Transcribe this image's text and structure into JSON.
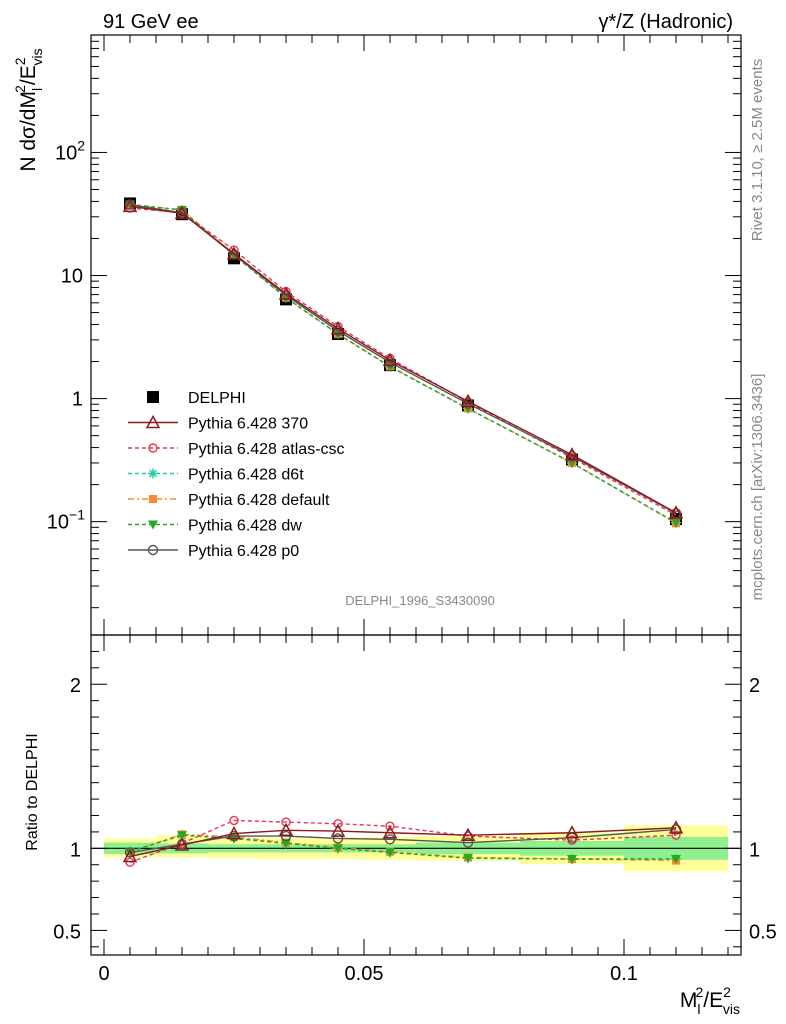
{
  "header": {
    "left": "91 GeV ee",
    "right": "γ*/Z (Hadronic)"
  },
  "side_labels": {
    "rivet": "Rivet 3.1.10, ≥ 2.5M events",
    "mcplots": "mcplots.cern.ch [arXiv:1306.3436]"
  },
  "watermark": "DELPHI_1996_S3430090",
  "colors": {
    "data": "#000000",
    "p370": "#8b1a1a",
    "atlas": "#ee3355",
    "d6t": "#22ccaa",
    "default": "#ff8833",
    "dw": "#22aa22",
    "p0": "#555555",
    "band_inner": "#90f090",
    "band_outer": "#ffff99"
  },
  "chart_data": [
    {
      "type": "line",
      "ylabel_main": "N dσ/dM",
      "ylabel_sub1": "l",
      "ylabel_sup1": "2",
      "ylabel_mid": "/E",
      "ylabel_sup2": "2",
      "ylabel_sub2": "vis",
      "yscale": "log",
      "ylim": [
        0.012,
        900
      ],
      "xlim": [
        -0.0025,
        0.1225
      ],
      "yticks": [
        {
          "v": 0.1,
          "base": "10",
          "exp": "−1"
        },
        {
          "v": 1,
          "label": "1"
        },
        {
          "v": 10,
          "label": "10"
        },
        {
          "v": 100,
          "base": "10",
          "exp": "2"
        }
      ],
      "x": [
        0.005,
        0.015,
        0.025,
        0.035,
        0.045,
        0.055,
        0.07,
        0.09,
        0.11
      ],
      "data": {
        "name": "DELPHI",
        "values": [
          38.5,
          31.5,
          13.8,
          6.4,
          3.35,
          1.87,
          0.88,
          0.32,
          0.105
        ]
      },
      "series": [
        {
          "name": "Pythia 6.428 370",
          "key": "p370",
          "dash": "",
          "marker": "tri-open",
          "values": [
            36.5,
            32.0,
            15.0,
            7.1,
            3.7,
            2.05,
            0.95,
            0.35,
            0.118
          ]
        },
        {
          "name": "Pythia 6.428 atlas-csc",
          "key": "atlas",
          "dash": "4,3",
          "marker": "circ-open",
          "values": [
            35.3,
            32.5,
            16.1,
            7.4,
            3.85,
            2.12,
            0.94,
            0.33,
            0.113
          ]
        },
        {
          "name": "Pythia 6.428 d6t",
          "key": "d6t",
          "dash": "4,3",
          "marker": "star",
          "values": [
            37.8,
            34.0,
            14.7,
            6.6,
            3.35,
            1.82,
            0.83,
            0.3,
            0.098
          ]
        },
        {
          "name": "Pythia 6.428 default",
          "key": "default",
          "dash": "6,3,2,3",
          "marker": "square",
          "values": [
            37.8,
            34.2,
            14.8,
            6.6,
            3.36,
            1.83,
            0.83,
            0.3,
            0.097
          ]
        },
        {
          "name": "Pythia 6.428 dw",
          "key": "dw",
          "dash": "4,3",
          "marker": "tri-down",
          "values": [
            37.8,
            34.0,
            14.6,
            6.6,
            3.35,
            1.82,
            0.83,
            0.3,
            0.098
          ]
        },
        {
          "name": "Pythia 6.428 p0",
          "key": "p0",
          "dash": "",
          "marker": "circ-open-dark",
          "values": [
            37.6,
            32.3,
            14.8,
            6.9,
            3.55,
            1.97,
            0.91,
            0.34,
            0.117
          ]
        }
      ]
    },
    {
      "type": "line",
      "ylabel": "Ratio to DELPHI",
      "xlabel_main": "M",
      "xlabel_sub1": "l",
      "xlabel_sup1": "2",
      "xlabel_mid": "/E",
      "xlabel_sup2": "2",
      "xlabel_sub2": "vis",
      "ylim": [
        0.35,
        2.3
      ],
      "xlim": [
        -0.0025,
        0.1225
      ],
      "yticks": [
        0.5,
        1,
        2
      ],
      "ytick_labels": [
        "0.5",
        "1",
        "2"
      ],
      "xticks": [
        0,
        0.05,
        0.1
      ],
      "xtick_labels": [
        "0",
        "0.05",
        "0.1"
      ],
      "bands": [
        {
          "x0": 0.0,
          "x1": 0.01,
          "inner": [
            0.965,
            1.035
          ],
          "outer": [
            0.945,
            1.06
          ]
        },
        {
          "x0": 0.01,
          "x1": 0.02,
          "inner": [
            0.97,
            1.03
          ],
          "outer": [
            0.945,
            1.08
          ]
        },
        {
          "x0": 0.02,
          "x1": 0.03,
          "inner": [
            0.975,
            1.025
          ],
          "outer": [
            0.94,
            1.06
          ]
        },
        {
          "x0": 0.03,
          "x1": 0.04,
          "inner": [
            0.975,
            1.025
          ],
          "outer": [
            0.935,
            1.065
          ]
        },
        {
          "x0": 0.04,
          "x1": 0.05,
          "inner": [
            0.975,
            1.025
          ],
          "outer": [
            0.935,
            1.065
          ]
        },
        {
          "x0": 0.05,
          "x1": 0.06,
          "inner": [
            0.975,
            1.025
          ],
          "outer": [
            0.93,
            1.07
          ]
        },
        {
          "x0": 0.06,
          "x1": 0.08,
          "inner": [
            0.965,
            1.035
          ],
          "outer": [
            0.925,
            1.075
          ]
        },
        {
          "x0": 0.08,
          "x1": 0.1,
          "inner": [
            0.955,
            1.045
          ],
          "outer": [
            0.905,
            1.095
          ]
        },
        {
          "x0": 0.1,
          "x1": 0.12,
          "inner": [
            0.93,
            1.07
          ],
          "outer": [
            0.86,
            1.14
          ]
        }
      ],
      "series": [
        {
          "key": "p370",
          "dash": "",
          "marker": "tri-open",
          "values": [
            0.95,
            1.02,
            1.09,
            1.11,
            1.105,
            1.095,
            1.08,
            1.095,
            1.125
          ]
        },
        {
          "key": "atlas",
          "dash": "4,3",
          "marker": "circ-open",
          "values": [
            0.915,
            1.03,
            1.17,
            1.16,
            1.15,
            1.135,
            1.075,
            1.05,
            1.08
          ]
        },
        {
          "key": "d6t",
          "dash": "4,3",
          "marker": "star",
          "values": [
            0.98,
            1.08,
            1.065,
            1.03,
            1.0,
            0.975,
            0.94,
            0.935,
            0.935
          ]
        },
        {
          "key": "default",
          "dash": "6,3,2,3",
          "marker": "square",
          "values": [
            0.98,
            1.085,
            1.07,
            1.035,
            1.005,
            0.98,
            0.945,
            0.935,
            0.925
          ]
        },
        {
          "key": "dw",
          "dash": "4,3",
          "marker": "tri-down",
          "values": [
            0.98,
            1.08,
            1.06,
            1.03,
            1.0,
            0.975,
            0.94,
            0.935,
            0.935
          ]
        },
        {
          "key": "p0",
          "dash": "",
          "marker": "circ-open-dark",
          "values": [
            0.975,
            1.025,
            1.075,
            1.075,
            1.06,
            1.055,
            1.035,
            1.065,
            1.115
          ]
        }
      ]
    }
  ]
}
